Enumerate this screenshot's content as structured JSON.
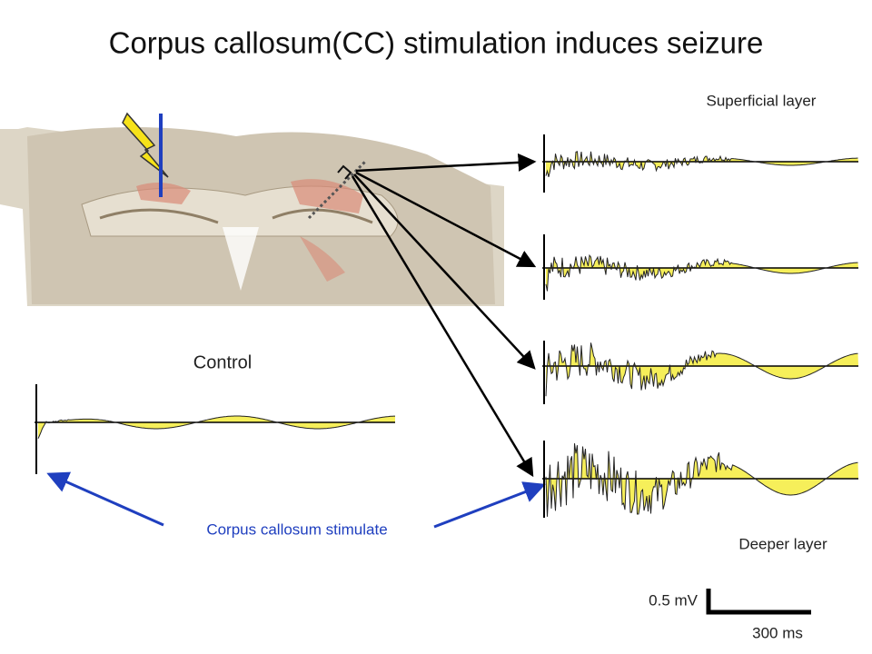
{
  "title": "Corpus callosum(CC) stimulation induces seizure",
  "labels": {
    "superficial": "Superficial layer",
    "control": "Control",
    "stimulate": "Corpus callosum stimulate",
    "deeper": "Deeper layer",
    "scale_v": "0.5 mV",
    "scale_t": "300 ms"
  }
}
